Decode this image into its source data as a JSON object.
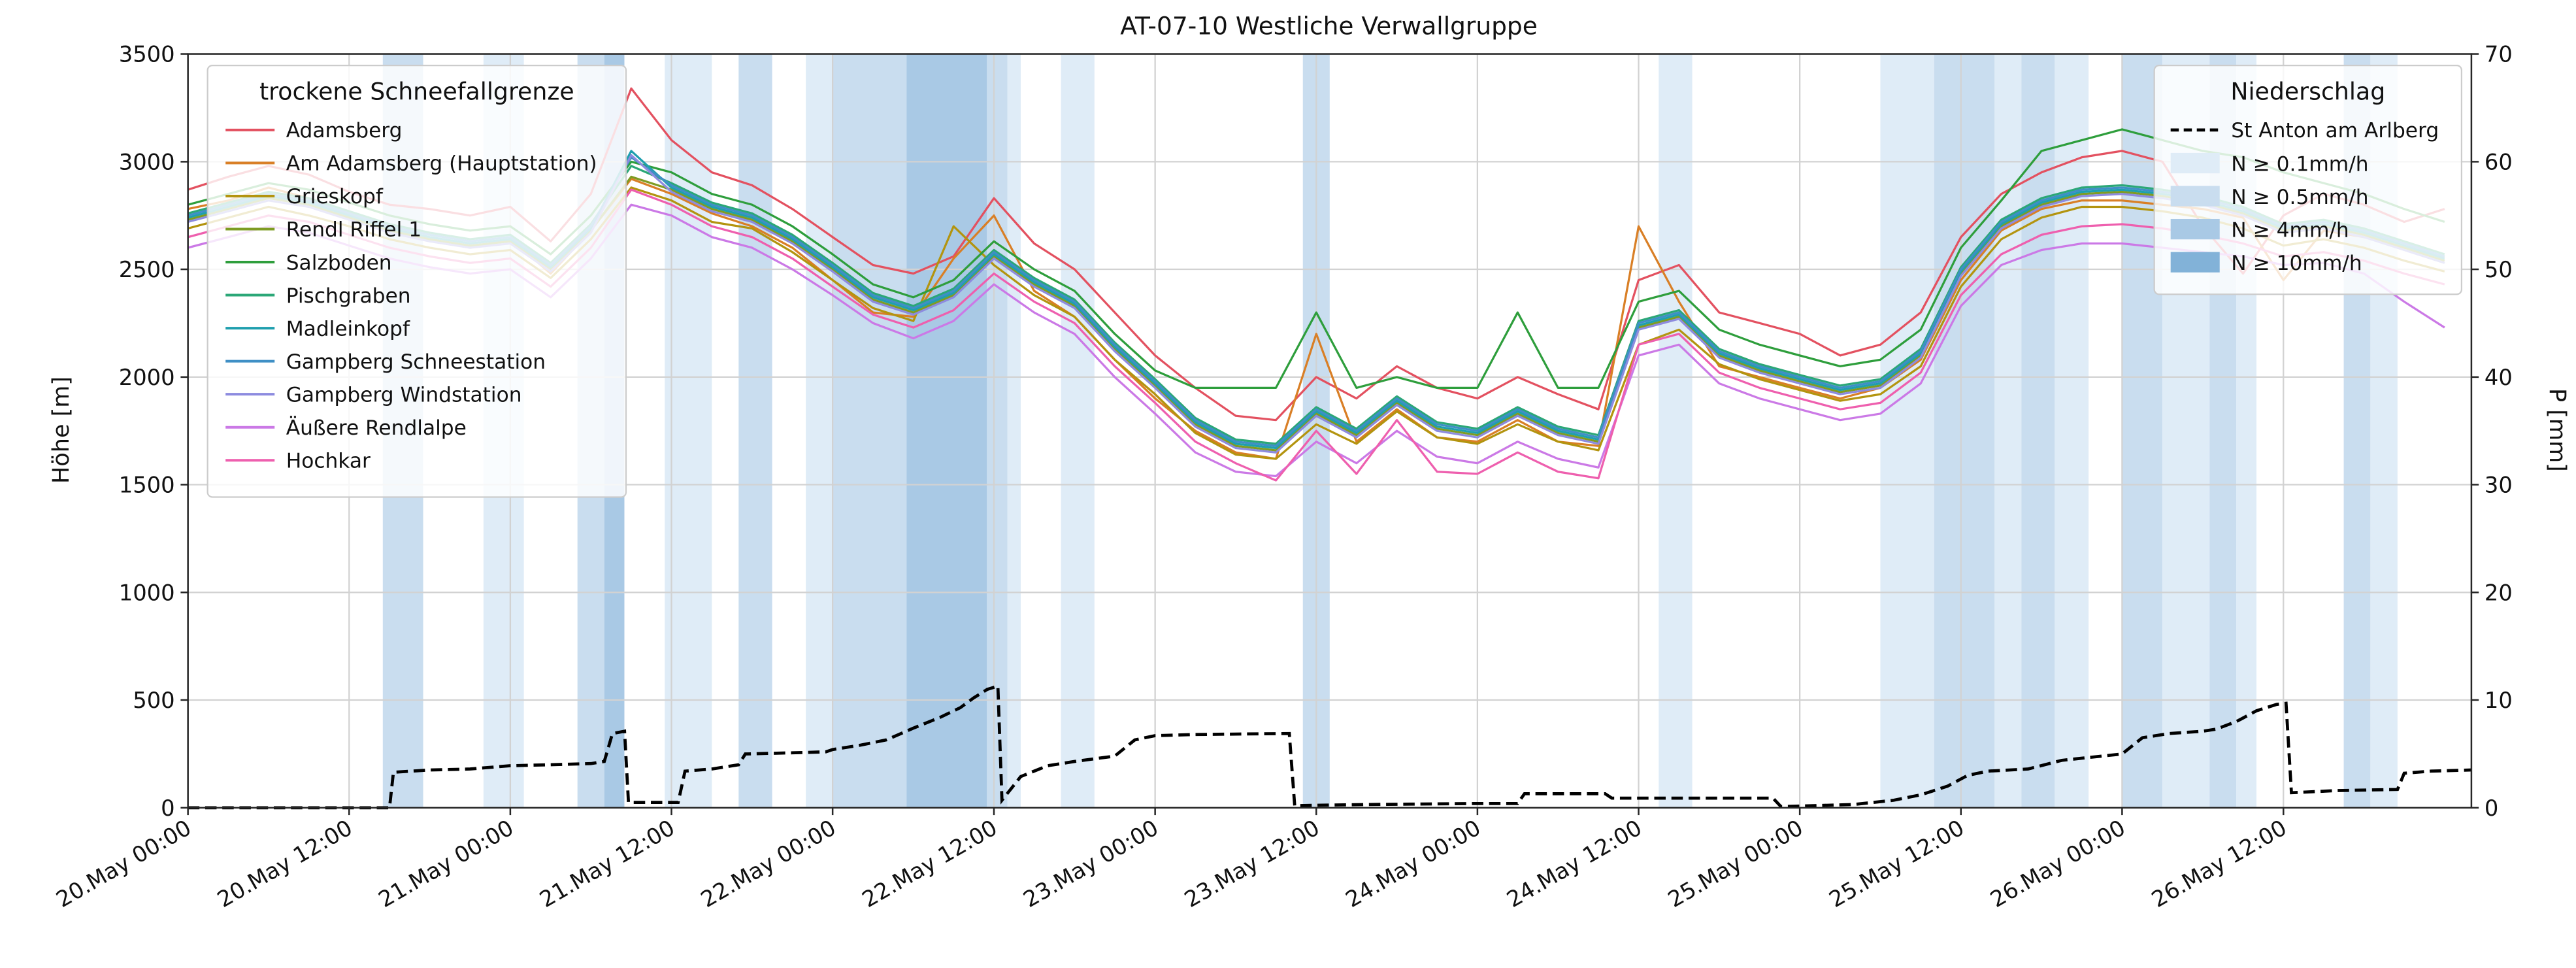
{
  "chart": {
    "title": "AT-07-10 Westliche Verwallgruppe",
    "ylabel_left": "Höhe [m]",
    "ylabel_right": "P [mm]"
  },
  "legend_snowline": {
    "title": "trockene Schneefallgrenze"
  },
  "legend_precip": {
    "title": "Niederschlag"
  },
  "chart_data": {
    "type": "line",
    "title": "AT-07-10 Westliche Verwallgruppe",
    "xlabel": "",
    "ylabel_left": "Höhe [m]",
    "ylabel_right": "P [mm]",
    "ylim_left": [
      0,
      3500
    ],
    "ylim_right": [
      0,
      70
    ],
    "grid": true,
    "x_domain_hours": [
      0,
      170
    ],
    "x_step_hours": 3,
    "y_ticks_left": [
      0,
      500,
      1000,
      1500,
      2000,
      2500,
      3000,
      3500
    ],
    "y_ticks_right": [
      0,
      10,
      20,
      30,
      40,
      50,
      60,
      70
    ],
    "x_ticks": [
      {
        "t": 0,
        "label": "20.May 00:00"
      },
      {
        "t": 12,
        "label": "20.May 12:00"
      },
      {
        "t": 24,
        "label": "21.May 00:00"
      },
      {
        "t": 36,
        "label": "21.May 12:00"
      },
      {
        "t": 48,
        "label": "22.May 00:00"
      },
      {
        "t": 60,
        "label": "22.May 12:00"
      },
      {
        "t": 72,
        "label": "23.May 00:00"
      },
      {
        "t": 84,
        "label": "23.May 12:00"
      },
      {
        "t": 96,
        "label": "24.May 00:00"
      },
      {
        "t": 108,
        "label": "24.May 12:00"
      },
      {
        "t": 120,
        "label": "25.May 00:00"
      },
      {
        "t": 132,
        "label": "25.May 12:00"
      },
      {
        "t": 144,
        "label": "26.May 00:00"
      },
      {
        "t": 156,
        "label": "26.May 12:00"
      }
    ],
    "series": [
      {
        "name": "Adamsberg",
        "slug": "adamsberg",
        "color": "#e35160",
        "values": [
          2870,
          2930,
          2980,
          2940,
          2860,
          2800,
          2780,
          2750,
          2790,
          2630,
          2850,
          3340,
          3100,
          2950,
          2890,
          2780,
          2650,
          2520,
          2480,
          2560,
          2830,
          2620,
          2500,
          2300,
          2100,
          1950,
          1820,
          1800,
          2000,
          1900,
          2050,
          1950,
          1900,
          2000,
          1920,
          1850,
          2450,
          2520,
          2300,
          2250,
          2200,
          2100,
          2150,
          2300,
          2650,
          2850,
          2950,
          3020,
          3050,
          3000,
          2700,
          2480,
          2750,
          2850,
          2800,
          2720,
          2780
        ]
      },
      {
        "name": "Am Adamsberg (Hauptstation)",
        "slug": "am-adamsberg-hauptstation",
        "color": "#d97f26",
        "values": [
          2780,
          2820,
          2880,
          2830,
          2750,
          2680,
          2640,
          2600,
          2640,
          2480,
          2680,
          2920,
          2850,
          2760,
          2700,
          2600,
          2450,
          2300,
          2280,
          2550,
          2750,
          2400,
          2280,
          2080,
          1900,
          1750,
          1650,
          1620,
          2200,
          1700,
          1850,
          1720,
          1700,
          1800,
          1700,
          1680,
          2700,
          2350,
          2050,
          2000,
          1950,
          1900,
          1950,
          2080,
          2450,
          2680,
          2780,
          2820,
          2820,
          2800,
          2780,
          2740,
          2450,
          2680,
          2650,
          2600,
          2560
        ]
      },
      {
        "name": "Grieskopf",
        "slug": "grieskopf",
        "color": "#b3940f",
        "values": [
          2690,
          2740,
          2790,
          2750,
          2700,
          2640,
          2600,
          2570,
          2590,
          2460,
          2640,
          2880,
          2820,
          2720,
          2690,
          2580,
          2450,
          2320,
          2260,
          2700,
          2520,
          2380,
          2280,
          2080,
          1920,
          1740,
          1640,
          1620,
          1780,
          1690,
          1840,
          1720,
          1690,
          1780,
          1700,
          1660,
          2150,
          2220,
          2060,
          1990,
          1940,
          1890,
          1920,
          2050,
          2420,
          2640,
          2740,
          2790,
          2790,
          2770,
          2740,
          2690,
          2610,
          2640,
          2600,
          2540,
          2490
        ]
      },
      {
        "name": "Rendl Riffel 1",
        "slug": "rendl-riffel-1",
        "color": "#7e9c23",
        "values": [
          2730,
          2780,
          2830,
          2800,
          2740,
          2680,
          2640,
          2610,
          2630,
          2500,
          2680,
          2930,
          2870,
          2780,
          2730,
          2630,
          2500,
          2360,
          2300,
          2380,
          2560,
          2430,
          2330,
          2130,
          1960,
          1780,
          1680,
          1660,
          1830,
          1730,
          1880,
          1760,
          1730,
          1830,
          1740,
          1700,
          2230,
          2280,
          2100,
          2030,
          1980,
          1930,
          1960,
          2100,
          2480,
          2700,
          2800,
          2850,
          2860,
          2840,
          2810,
          2760,
          2680,
          2700,
          2660,
          2600,
          2540
        ]
      },
      {
        "name": "Salzboden",
        "slug": "salzboden",
        "color": "#2e9e3c",
        "values": [
          2800,
          2850,
          2900,
          2870,
          2810,
          2750,
          2710,
          2680,
          2700,
          2570,
          2750,
          3000,
          2950,
          2850,
          2800,
          2700,
          2570,
          2430,
          2370,
          2450,
          2630,
          2500,
          2400,
          2200,
          2030,
          1950,
          1950,
          1950,
          2300,
          1950,
          2000,
          1950,
          1950,
          2300,
          1950,
          1950,
          2350,
          2400,
          2220,
          2150,
          2100,
          2050,
          2080,
          2220,
          2600,
          2820,
          3050,
          3100,
          3150,
          3100,
          3050,
          3020,
          2950,
          2900,
          2850,
          2780,
          2720
        ]
      },
      {
        "name": "Pischgraben",
        "slug": "pischgraben",
        "color": "#2ba777",
        "values": [
          2760,
          2810,
          2860,
          2830,
          2770,
          2710,
          2670,
          2640,
          2660,
          2530,
          2710,
          2980,
          2900,
          2810,
          2760,
          2660,
          2530,
          2390,
          2330,
          2410,
          2590,
          2460,
          2360,
          2160,
          1990,
          1810,
          1710,
          1690,
          1860,
          1760,
          1910,
          1790,
          1760,
          1860,
          1770,
          1730,
          2260,
          2310,
          2130,
          2060,
          2010,
          1960,
          1990,
          2130,
          2510,
          2730,
          2830,
          2880,
          2890,
          2870,
          2840,
          2790,
          2710,
          2730,
          2690,
          2630,
          2570
        ]
      },
      {
        "name": "Madleinkopf",
        "slug": "madleinkopf",
        "color": "#1f9fae",
        "values": [
          2740,
          2790,
          2840,
          2810,
          2750,
          2690,
          2650,
          2620,
          2640,
          2510,
          2690,
          3050,
          2880,
          2790,
          2740,
          2640,
          2510,
          2370,
          2310,
          2390,
          2570,
          2440,
          2340,
          2140,
          1970,
          1790,
          1690,
          1670,
          1840,
          1740,
          1890,
          1770,
          1740,
          1840,
          1750,
          1710,
          2240,
          2290,
          2110,
          2040,
          1990,
          1940,
          1970,
          2110,
          2490,
          2710,
          2810,
          2860,
          2870,
          2850,
          2820,
          2770,
          2690,
          2710,
          2670,
          2610,
          2550
        ]
      },
      {
        "name": "Gampberg Schneestation",
        "slug": "gampberg-schneestation",
        "color": "#3f8fc5",
        "values": [
          2750,
          2800,
          2850,
          2820,
          2760,
          2700,
          2660,
          2630,
          2650,
          2520,
          2700,
          3020,
          2890,
          2800,
          2750,
          2650,
          2520,
          2380,
          2320,
          2400,
          2580,
          2450,
          2350,
          2150,
          1980,
          1800,
          1700,
          1680,
          1850,
          1750,
          1900,
          1780,
          1750,
          1850,
          1760,
          1720,
          2250,
          2300,
          2120,
          2050,
          2000,
          1950,
          1980,
          2120,
          2500,
          2720,
          2820,
          2870,
          2880,
          2860,
          2830,
          2780,
          2700,
          2720,
          2680,
          2620,
          2560
        ]
      },
      {
        "name": "Gampberg Windstation",
        "slug": "gampberg-windstation",
        "color": "#8d8bdf",
        "values": [
          2720,
          2770,
          2820,
          2790,
          2730,
          2670,
          2630,
          2600,
          2620,
          2490,
          2670,
          3030,
          2860,
          2770,
          2720,
          2620,
          2490,
          2350,
          2290,
          2370,
          2550,
          2420,
          2320,
          2120,
          1950,
          1770,
          1670,
          1650,
          1820,
          1720,
          1870,
          1750,
          1720,
          1820,
          1730,
          1690,
          2220,
          2270,
          2090,
          2020,
          1970,
          1920,
          1950,
          2090,
          2470,
          2690,
          2790,
          2840,
          2850,
          2830,
          2800,
          2750,
          2670,
          2690,
          2650,
          2590,
          2530
        ]
      },
      {
        "name": "Äußere Rendlalpe",
        "slug": "aeussere-rendlalpe",
        "color": "#cb79e6",
        "values": [
          2600,
          2650,
          2700,
          2670,
          2610,
          2550,
          2510,
          2480,
          2500,
          2370,
          2550,
          2800,
          2750,
          2650,
          2600,
          2500,
          2380,
          2250,
          2180,
          2260,
          2430,
          2300,
          2200,
          2000,
          1830,
          1650,
          1560,
          1540,
          1700,
          1600,
          1750,
          1630,
          1600,
          1700,
          1620,
          1580,
          2100,
          2150,
          1970,
          1900,
          1850,
          1800,
          1830,
          1970,
          2330,
          2520,
          2590,
          2620,
          2620,
          2600,
          2580,
          2560,
          2520,
          2530,
          2480,
          2350,
          2230
        ]
      },
      {
        "name": "Hochkar",
        "slug": "hochkar",
        "color": "#ee5fae",
        "values": [
          2650,
          2700,
          2750,
          2720,
          2660,
          2600,
          2560,
          2530,
          2550,
          2420,
          2600,
          2870,
          2800,
          2700,
          2650,
          2550,
          2420,
          2290,
          2230,
          2310,
          2480,
          2350,
          2250,
          2050,
          1880,
          1700,
          1600,
          1520,
          1750,
          1550,
          1800,
          1560,
          1550,
          1650,
          1560,
          1530,
          2150,
          2200,
          2020,
          1950,
          1900,
          1850,
          1880,
          2020,
          2380,
          2570,
          2660,
          2700,
          2710,
          2690,
          2660,
          2620,
          2560,
          2580,
          2540,
          2480,
          2430
        ]
      }
    ],
    "precipitation_line": {
      "name": "St Anton am Arlberg",
      "color": "#000000",
      "style": "dashed",
      "axis": "right",
      "points": [
        [
          0,
          0
        ],
        [
          15,
          0
        ],
        [
          15.3,
          3.3
        ],
        [
          18,
          3.5
        ],
        [
          21,
          3.6
        ],
        [
          24,
          3.9
        ],
        [
          27,
          4.0
        ],
        [
          30,
          4.1
        ],
        [
          31,
          4.3
        ],
        [
          31.6,
          6.9
        ],
        [
          32.5,
          7.1
        ],
        [
          32.8,
          0.5
        ],
        [
          36.5,
          0.5
        ],
        [
          37,
          3.4
        ],
        [
          39,
          3.6
        ],
        [
          41,
          4.0
        ],
        [
          41.5,
          5.0
        ],
        [
          45,
          5.1
        ],
        [
          47.5,
          5.2
        ],
        [
          48,
          5.4
        ],
        [
          50,
          5.8
        ],
        [
          52,
          6.3
        ],
        [
          54,
          7.4
        ],
        [
          56,
          8.4
        ],
        [
          57.5,
          9.3
        ],
        [
          58.5,
          10.2
        ],
        [
          59.5,
          11.0
        ],
        [
          60.3,
          11.3
        ],
        [
          60.6,
          0.7
        ],
        [
          62,
          2.9
        ],
        [
          64,
          3.9
        ],
        [
          66,
          4.3
        ],
        [
          69,
          4.8
        ],
        [
          70.5,
          6.3
        ],
        [
          72,
          6.7
        ],
        [
          75,
          6.8
        ],
        [
          82,
          6.9
        ],
        [
          82.4,
          0.2
        ],
        [
          88,
          0.3
        ],
        [
          96,
          0.4
        ],
        [
          99,
          0.4
        ],
        [
          99.5,
          1.3
        ],
        [
          105.5,
          1.3
        ],
        [
          106,
          0.9
        ],
        [
          118,
          0.9
        ],
        [
          118.6,
          0.1
        ],
        [
          124,
          0.3
        ],
        [
          127,
          0.7
        ],
        [
          129,
          1.2
        ],
        [
          131,
          2.0
        ],
        [
          132.5,
          3.0
        ],
        [
          134,
          3.4
        ],
        [
          137,
          3.6
        ],
        [
          139.5,
          4.4
        ],
        [
          141,
          4.6
        ],
        [
          144,
          5.0
        ],
        [
          145.5,
          6.5
        ],
        [
          147.5,
          6.9
        ],
        [
          150,
          7.1
        ],
        [
          151,
          7.3
        ],
        [
          152.5,
          8.0
        ],
        [
          154,
          9.0
        ],
        [
          155.5,
          9.6
        ],
        [
          156.2,
          9.7
        ],
        [
          156.6,
          1.4
        ],
        [
          160,
          1.6
        ],
        [
          164.5,
          1.7
        ],
        [
          165,
          3.2
        ],
        [
          167,
          3.4
        ],
        [
          170,
          3.5
        ]
      ]
    },
    "band_levels": [
      {
        "label": "N ≥ 0.1mm/h",
        "color": "#dfecf7"
      },
      {
        "label": "N ≥ 0.5mm/h",
        "color": "#c9ddef"
      },
      {
        "label": "N ≥ 4mm/h",
        "color": "#a9c9e5"
      },
      {
        "label": "N ≥ 10mm/h",
        "color": "#82b2d8"
      }
    ],
    "precip_bands": [
      {
        "start": 14.5,
        "end": 17.5,
        "level": 2
      },
      {
        "start": 22,
        "end": 25,
        "level": 1
      },
      {
        "start": 29,
        "end": 31,
        "level": 2
      },
      {
        "start": 31,
        "end": 32.5,
        "level": 3
      },
      {
        "start": 35.5,
        "end": 39,
        "level": 1
      },
      {
        "start": 41,
        "end": 43.5,
        "level": 2
      },
      {
        "start": 46,
        "end": 48,
        "level": 1
      },
      {
        "start": 48,
        "end": 53.5,
        "level": 2
      },
      {
        "start": 53.5,
        "end": 59.5,
        "level": 3
      },
      {
        "start": 59.5,
        "end": 61,
        "level": 2
      },
      {
        "start": 61,
        "end": 62,
        "level": 1
      },
      {
        "start": 65,
        "end": 67.5,
        "level": 1
      },
      {
        "start": 83,
        "end": 85,
        "level": 2
      },
      {
        "start": 109.5,
        "end": 112,
        "level": 1
      },
      {
        "start": 126,
        "end": 130,
        "level": 1
      },
      {
        "start": 130,
        "end": 134.5,
        "level": 2
      },
      {
        "start": 134.5,
        "end": 136.5,
        "level": 1
      },
      {
        "start": 136.5,
        "end": 139,
        "level": 2
      },
      {
        "start": 139,
        "end": 141.5,
        "level": 1
      },
      {
        "start": 144,
        "end": 147,
        "level": 2
      },
      {
        "start": 147,
        "end": 150.5,
        "level": 1
      },
      {
        "start": 150.5,
        "end": 152.5,
        "level": 2
      },
      {
        "start": 152.5,
        "end": 154,
        "level": 1
      },
      {
        "start": 160.5,
        "end": 162.5,
        "level": 2
      },
      {
        "start": 162.5,
        "end": 164.5,
        "level": 1
      }
    ]
  }
}
